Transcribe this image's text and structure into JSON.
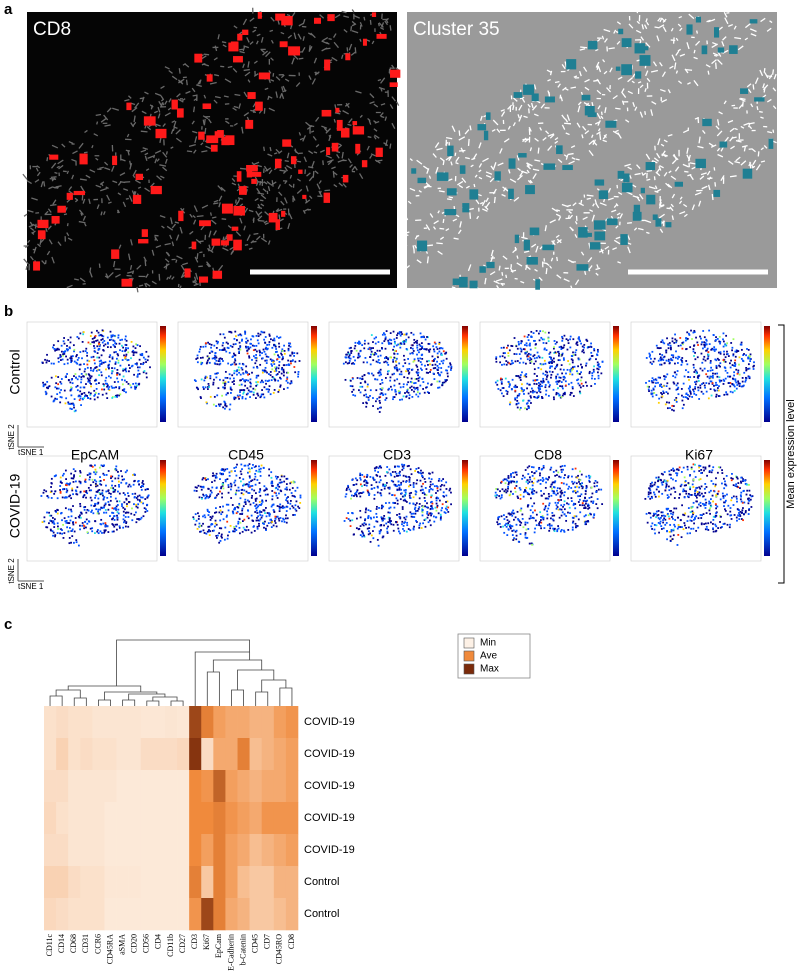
{
  "panel_labels": [
    "a",
    "b",
    "c"
  ],
  "panel_a": {
    "images": [
      {
        "label": "CD8"
      },
      {
        "label": "Cluster 35"
      }
    ]
  },
  "panel_b": {
    "groups": [
      "Control",
      "COVID-19"
    ],
    "markers": [
      "EpCAM",
      "CD45",
      "CD3",
      "CD8",
      "Ki67"
    ],
    "x_axis": "tSNE 1",
    "y_axis": "tSNE 2",
    "colorbar_label": "Mean expression level"
  },
  "chart_data": {
    "type": "heatmap",
    "categories": [
      "CD11c",
      "CD14",
      "CD68",
      "CD31",
      "CCR6",
      "CD45RA",
      "aSMA",
      "CD20",
      "CD56",
      "CD4",
      "CD11b",
      "CD27",
      "CD3",
      "Ki67",
      "EpCam",
      "E-Cadherin",
      "b-Catenin",
      "CD45",
      "CD7",
      "CD45RO",
      "CD8"
    ],
    "rows": [
      "COVID-19",
      "COVID-19",
      "COVID-19",
      "COVID-19",
      "COVID-19",
      "Control",
      "Control"
    ],
    "values": [
      [
        0.08,
        0.1,
        0.08,
        0.08,
        0.06,
        0.06,
        0.06,
        0.06,
        0.05,
        0.05,
        0.06,
        0.05,
        0.85,
        0.55,
        0.4,
        0.35,
        0.35,
        0.3,
        0.3,
        0.4,
        0.45
      ],
      [
        0.08,
        0.15,
        0.08,
        0.1,
        0.08,
        0.08,
        0.06,
        0.06,
        0.1,
        0.1,
        0.1,
        0.12,
        0.95,
        0.1,
        0.35,
        0.35,
        0.55,
        0.25,
        0.3,
        0.35,
        0.4
      ],
      [
        0.1,
        0.1,
        0.06,
        0.06,
        0.06,
        0.06,
        0.04,
        0.04,
        0.04,
        0.04,
        0.04,
        0.04,
        0.5,
        0.45,
        0.7,
        0.4,
        0.35,
        0.3,
        0.35,
        0.35,
        0.4
      ],
      [
        0.12,
        0.08,
        0.06,
        0.06,
        0.06,
        0.04,
        0.04,
        0.04,
        0.04,
        0.04,
        0.04,
        0.04,
        0.5,
        0.5,
        0.55,
        0.45,
        0.4,
        0.35,
        0.45,
        0.45,
        0.45
      ],
      [
        0.1,
        0.1,
        0.06,
        0.06,
        0.06,
        0.04,
        0.04,
        0.04,
        0.04,
        0.04,
        0.04,
        0.04,
        0.5,
        0.4,
        0.55,
        0.4,
        0.35,
        0.25,
        0.3,
        0.35,
        0.4
      ],
      [
        0.15,
        0.15,
        0.1,
        0.08,
        0.08,
        0.05,
        0.05,
        0.05,
        0.04,
        0.04,
        0.04,
        0.04,
        0.55,
        0.2,
        0.55,
        0.4,
        0.25,
        0.2,
        0.2,
        0.3,
        0.3
      ],
      [
        0.12,
        0.1,
        0.08,
        0.08,
        0.08,
        0.04,
        0.04,
        0.04,
        0.04,
        0.04,
        0.04,
        0.04,
        0.45,
        0.85,
        0.55,
        0.35,
        0.3,
        0.2,
        0.2,
        0.25,
        0.3
      ]
    ],
    "zlim": [
      0,
      1
    ],
    "colorscale_ticks": [
      {
        "value": 0,
        "label": "Min"
      },
      {
        "value": 0.5,
        "label": "Ave"
      },
      {
        "value": 1,
        "label": "Max"
      }
    ],
    "colors": [
      "#fdf1e6",
      "#f08a3c",
      "#7a2a0a"
    ]
  }
}
